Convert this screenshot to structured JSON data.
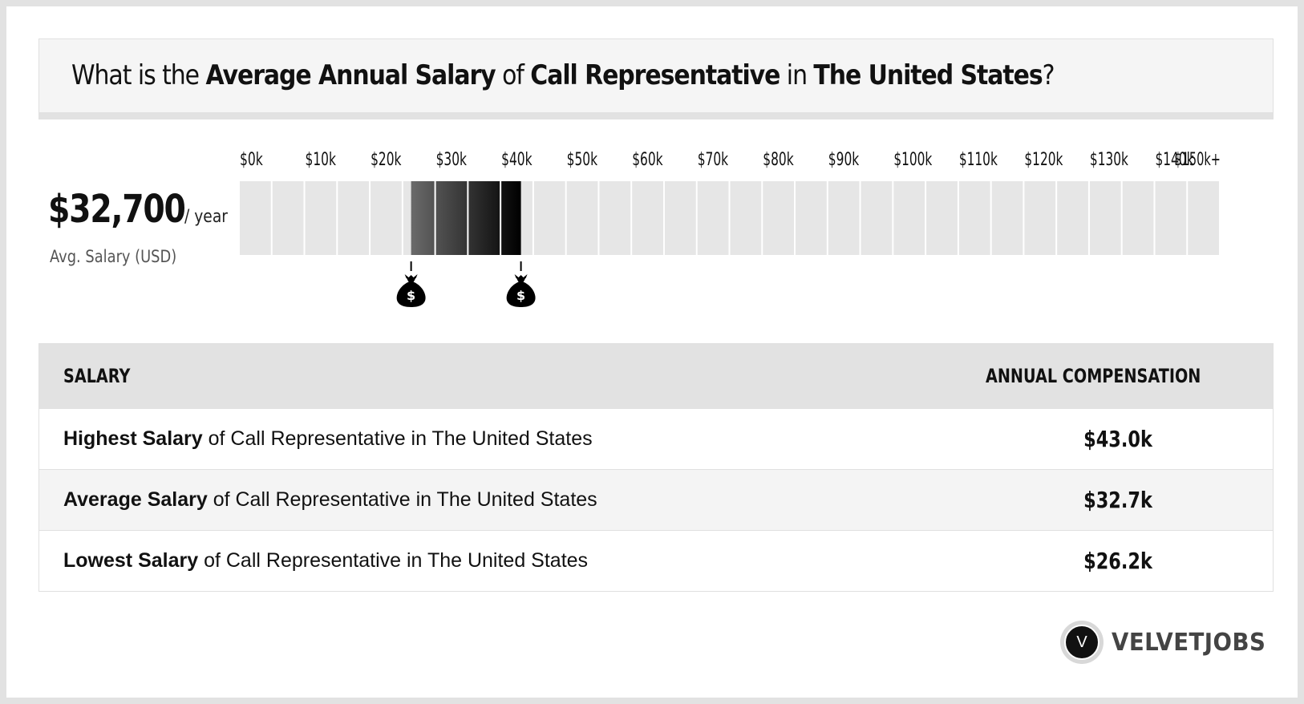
{
  "header": {
    "t1": "What is the ",
    "t2": "Average Annual Salary",
    "t3": " of ",
    "t4": "Call Representative",
    "t5": " in ",
    "t6": "The United States",
    "t7": "?"
  },
  "summary": {
    "amount": "$32,700",
    "unit": "/ year",
    "label": "Avg. Salary (USD)"
  },
  "chart_data": {
    "type": "bar",
    "tick_labels": [
      "$0k",
      "$10k",
      "$20k",
      "$30k",
      "$40k",
      "$50k",
      "$60k",
      "$70k",
      "$80k",
      "$90k",
      "$100k",
      "$110k",
      "$120k",
      "$130k",
      "$140k",
      "$150k+"
    ],
    "xlim": [
      0,
      150
    ],
    "range_low": 26.2,
    "range_high": 43.0,
    "average": 32.7,
    "markers": [
      26.2,
      43.0
    ],
    "marker_icon": "money-bag-icon",
    "marker_symbol": "$",
    "colors": {
      "cell": "#e6e6e6",
      "range_start": "#6a6a6a",
      "range_end": "#000000"
    }
  },
  "table": {
    "headers": {
      "left": "SALARY",
      "right": "ANNUAL COMPENSATION"
    },
    "rows": [
      {
        "bold": "Highest Salary",
        "rest": " of Call Representative in The United States",
        "value": "$43.0k"
      },
      {
        "bold": "Average Salary",
        "rest": " of Call Representative in The United States",
        "value": "$32.7k"
      },
      {
        "bold": "Lowest Salary",
        "rest": " of Call Representative in The United States",
        "value": "$26.2k"
      }
    ]
  },
  "logo": {
    "mark": "V",
    "text": "VELVETJOBS"
  }
}
